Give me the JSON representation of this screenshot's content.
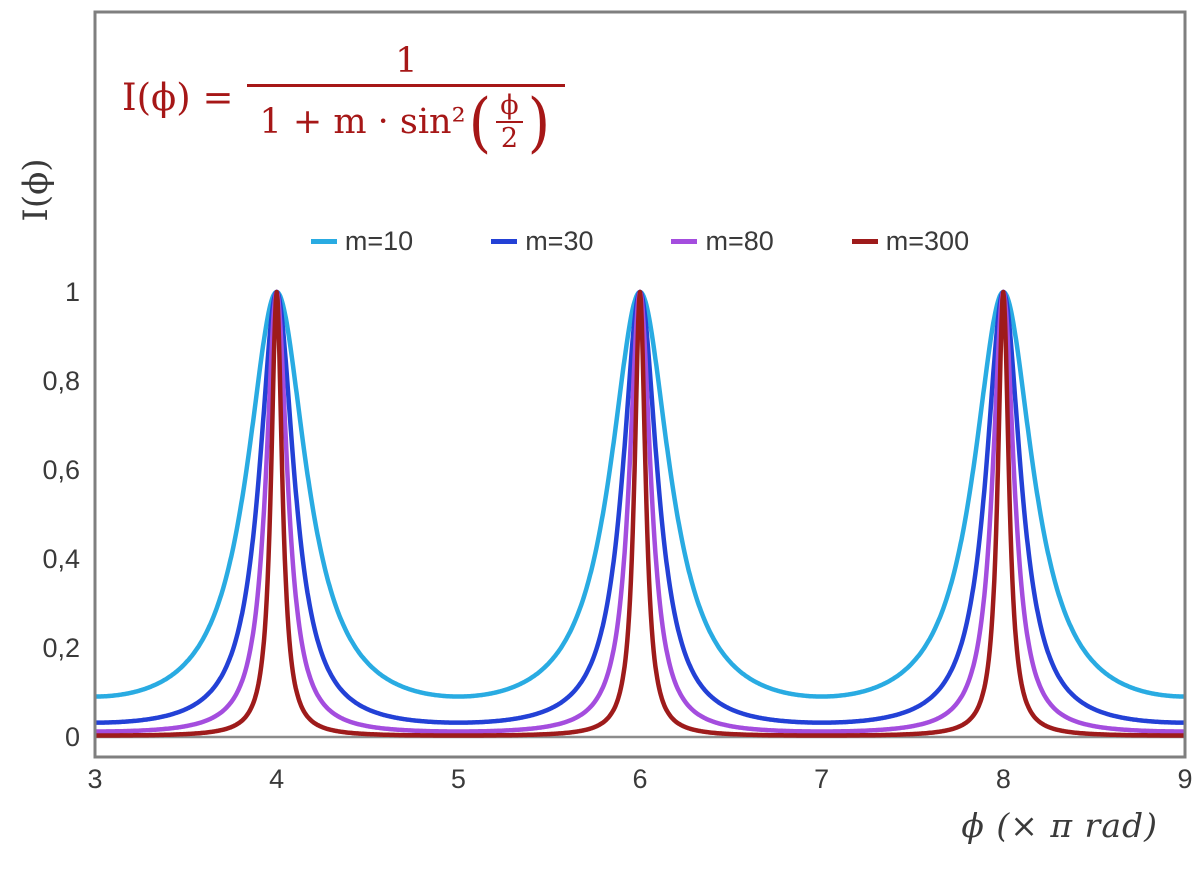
{
  "chart_data": {
    "type": "line",
    "title": "",
    "function": "I(x) = 1 / (1 + m * sin^2(x*pi/2)) with x in units of pi rad",
    "formula": {
      "plain_text": "I(ϕ) = 1 / (1 + m · sin²(ϕ/2))",
      "lhs": "I(ϕ) =",
      "numerator": "1",
      "denominator_prefix": "1 + m · sin²",
      "open_paren": "(",
      "inner_numerator": "ϕ",
      "inner_denominator": "2",
      "close_paren": ")",
      "color": "#A61717"
    },
    "xlabel": "ϕ  (× π rad)",
    "ylabel": "I(ϕ)",
    "x_units": "π rad",
    "xlim": [
      3,
      9
    ],
    "ylim": [
      0,
      1
    ],
    "x_ticks": [
      "3",
      "4",
      "5",
      "6",
      "7",
      "8",
      "9"
    ],
    "y_ticks": [
      {
        "label": "0",
        "value": 0
      },
      {
        "label": "0,2",
        "value": 0.2
      },
      {
        "label": "0,4",
        "value": 0.4
      },
      {
        "label": "0,6",
        "value": 0.6
      },
      {
        "label": "0,8",
        "value": 0.8
      },
      {
        "label": "1",
        "value": 1
      }
    ],
    "grid": false,
    "legend_position": "top-center",
    "series": [
      {
        "name": "m=10",
        "m": 10,
        "color": "#29ABE2"
      },
      {
        "name": "m=30",
        "m": 30,
        "color": "#2341D6"
      },
      {
        "name": "m=80",
        "m": 80,
        "color": "#A44DDE"
      },
      {
        "name": "m=300",
        "m": 300,
        "color": "#9E1B1B"
      }
    ],
    "peak_positions_x": [
      4,
      6,
      8
    ],
    "peak_value": 1,
    "sample_step_x": 0.005,
    "colors": {
      "frame": "#7F7F7F",
      "axis": "#8C8C8C",
      "text": "#3A3A3A"
    }
  }
}
